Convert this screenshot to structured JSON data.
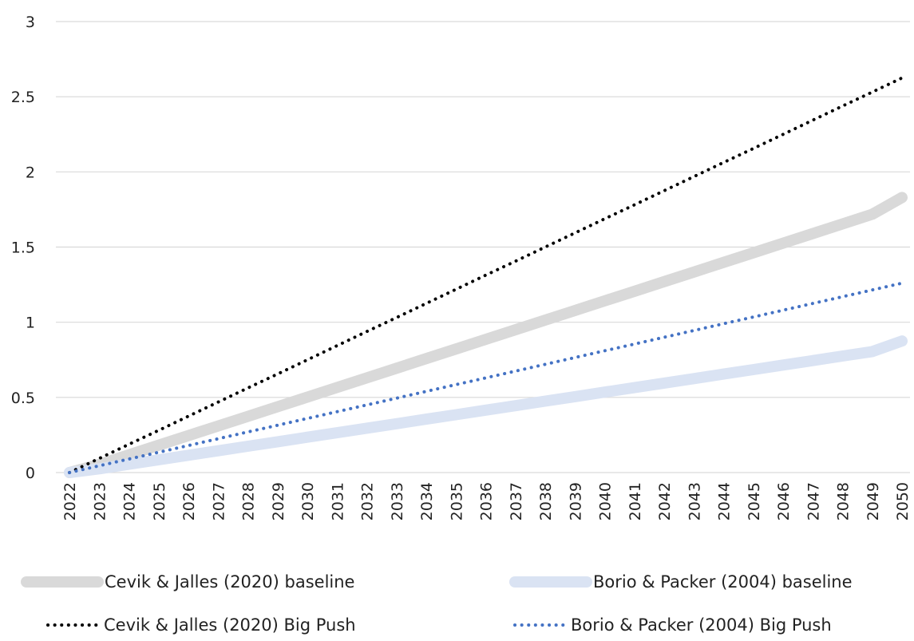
{
  "chart_data": {
    "type": "line",
    "title": "",
    "xlabel": "",
    "ylabel": "",
    "x": [
      "2022",
      "2023",
      "2024",
      "2025",
      "2026",
      "2027",
      "2028",
      "2029",
      "2030",
      "2031",
      "2032",
      "2033",
      "2034",
      "2035",
      "2036",
      "2037",
      "2038",
      "2039",
      "2040",
      "2041",
      "2042",
      "2043",
      "2044",
      "2045",
      "2046",
      "2047",
      "2048",
      "2049",
      "2050"
    ],
    "ylim": [
      0,
      3
    ],
    "yticks": [
      "0",
      "0.5",
      "1",
      "1.5",
      "2",
      "2.5",
      "3"
    ],
    "grid": "horizontal",
    "legend_position": "bottom",
    "series": [
      {
        "name": "Cevik & Jalles (2020) baseline",
        "style": "thick-solid",
        "color": "#d9d9d9",
        "values": [
          0.0,
          0.054,
          0.118,
          0.182,
          0.246,
          0.31,
          0.374,
          0.438,
          0.502,
          0.566,
          0.63,
          0.694,
          0.758,
          0.822,
          0.886,
          0.95,
          1.014,
          1.078,
          1.142,
          1.206,
          1.27,
          1.334,
          1.398,
          1.462,
          1.526,
          1.59,
          1.654,
          1.718,
          1.83
        ]
      },
      {
        "name": "Borio & Packer (2004) baseline",
        "style": "thick-solid",
        "color": "#dae3f3",
        "values": [
          0.0,
          0.025,
          0.055,
          0.085,
          0.115,
          0.145,
          0.175,
          0.205,
          0.235,
          0.265,
          0.295,
          0.325,
          0.355,
          0.385,
          0.415,
          0.445,
          0.475,
          0.505,
          0.535,
          0.565,
          0.595,
          0.625,
          0.655,
          0.685,
          0.715,
          0.745,
          0.775,
          0.805,
          0.875
        ]
      },
      {
        "name": "Cevik & Jalles (2020) Big Push",
        "style": "dotted",
        "color": "#000000",
        "values": [
          0.0,
          0.094,
          0.188,
          0.281,
          0.375,
          0.469,
          0.563,
          0.656,
          0.75,
          0.844,
          0.938,
          1.031,
          1.125,
          1.219,
          1.313,
          1.406,
          1.5,
          1.594,
          1.688,
          1.781,
          1.875,
          1.969,
          2.063,
          2.156,
          2.25,
          2.344,
          2.438,
          2.531,
          2.625
        ]
      },
      {
        "name": "Borio & Packer (2004) Big Push",
        "style": "dotted",
        "color": "#4472c4",
        "values": [
          0.0,
          0.045,
          0.09,
          0.135,
          0.18,
          0.225,
          0.27,
          0.315,
          0.36,
          0.405,
          0.45,
          0.495,
          0.54,
          0.585,
          0.63,
          0.675,
          0.72,
          0.765,
          0.81,
          0.855,
          0.9,
          0.945,
          0.99,
          1.035,
          1.08,
          1.125,
          1.17,
          1.215,
          1.26
        ]
      }
    ]
  }
}
